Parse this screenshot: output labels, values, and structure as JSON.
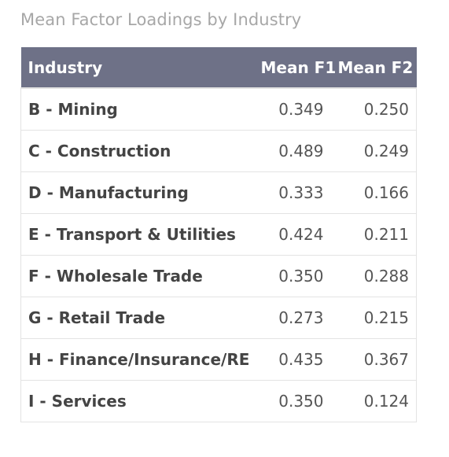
{
  "chart_data": {
    "type": "table",
    "title": "Mean Factor Loadings by Industry",
    "columns": [
      "Industry",
      "Mean F1",
      "Mean F2"
    ],
    "rows": [
      {
        "industry": "B - Mining",
        "f1": "0.349",
        "f2": "0.250"
      },
      {
        "industry": "C - Construction",
        "f1": "0.489",
        "f2": "0.249"
      },
      {
        "industry": "D - Manufacturing",
        "f1": "0.333",
        "f2": "0.166"
      },
      {
        "industry": "E - Transport & Utilities",
        "f1": "0.424",
        "f2": "0.211"
      },
      {
        "industry": "F - Wholesale Trade",
        "f1": "0.350",
        "f2": "0.288"
      },
      {
        "industry": "G - Retail Trade",
        "f1": "0.273",
        "f2": "0.215"
      },
      {
        "industry": "H - Finance/Insurance/RE",
        "f1": "0.435",
        "f2": "0.367"
      },
      {
        "industry": "I - Services",
        "f1": "0.350",
        "f2": "0.124"
      }
    ],
    "header_color": "#6e7187"
  }
}
